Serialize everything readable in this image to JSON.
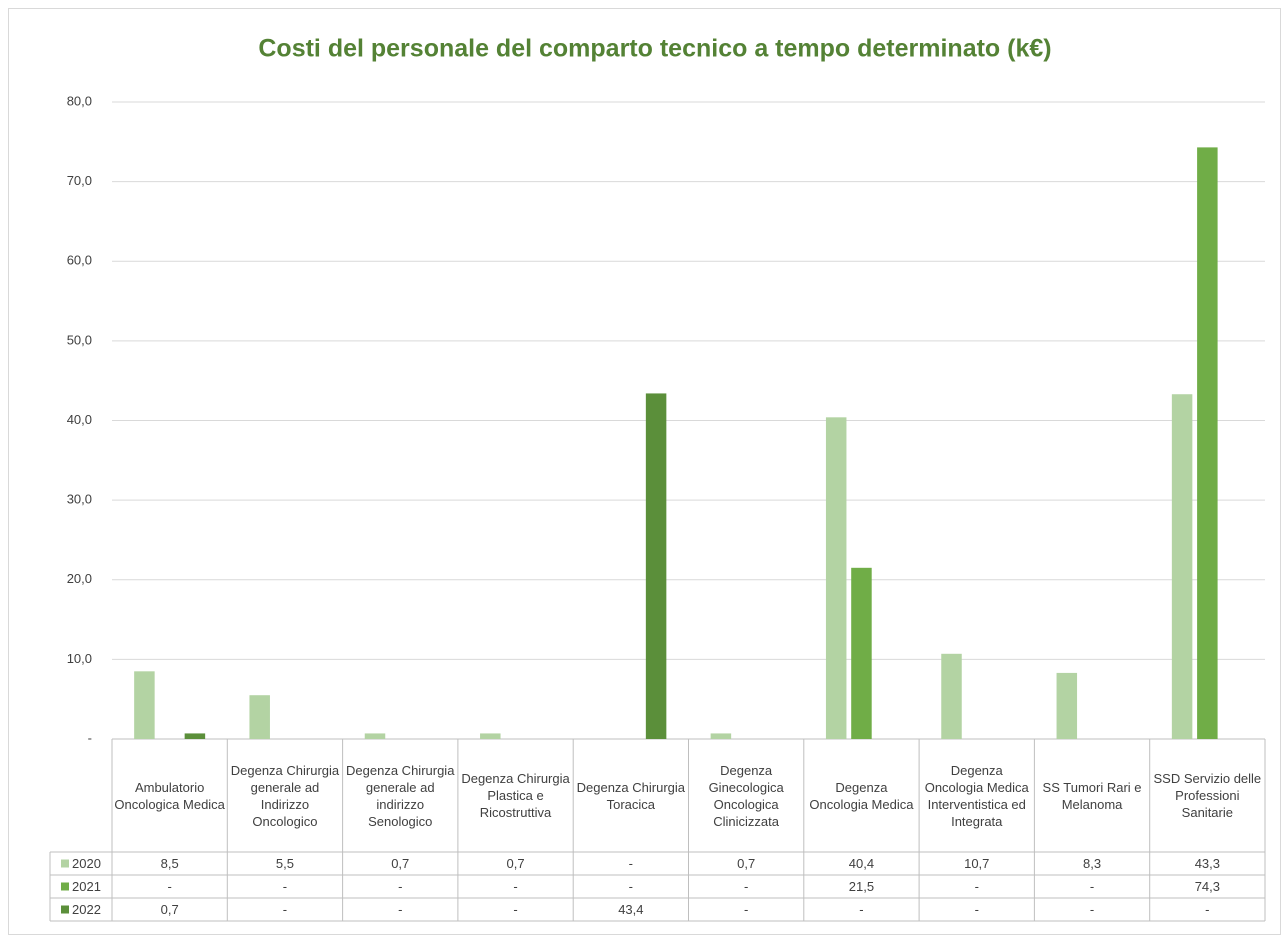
{
  "chart_data": {
    "type": "bar",
    "title": "Costi del personale del comparto tecnico a tempo determinato (k€)",
    "categories": [
      "Ambulatorio Oncologica Medica",
      "Degenza Chirurgia generale ad Indirizzo Oncologico",
      "Degenza Chirurgia generale ad indirizzo Senologico",
      "Degenza Chirurgia Plastica e Ricostruttiva",
      "Degenza Chirurgia Toracica",
      "Degenza Ginecologica Oncologica Clinicizzata",
      "Degenza Oncologia Medica",
      "Degenza Oncologia Medica Interventistica ed Integrata",
      "SS Tumori Rari e Melanoma",
      "SSD Servizio delle Professioni Sanitarie"
    ],
    "series": [
      {
        "name": "2020",
        "color": "#b3d3a3",
        "values": [
          8.5,
          5.5,
          0.7,
          0.7,
          0,
          0.7,
          40.4,
          10.7,
          8.3,
          43.3
        ],
        "value_labels": [
          "8,5",
          "5,5",
          "0,7",
          "0,7",
          "-",
          "0,7",
          "40,4",
          "10,7",
          "8,3",
          "43,3"
        ]
      },
      {
        "name": "2021",
        "color": "#70ad47",
        "values": [
          0,
          0,
          0,
          0,
          0,
          0,
          21.5,
          0,
          0,
          74.3
        ],
        "value_labels": [
          "-",
          "-",
          "-",
          "-",
          "-",
          "-",
          "21,5",
          "-",
          "-",
          "74,3"
        ]
      },
      {
        "name": "2022",
        "color": "#5b8f3a",
        "values": [
          0.7,
          0,
          0,
          0,
          43.4,
          0,
          0,
          0,
          0,
          0
        ],
        "value_labels": [
          "0,7",
          "-",
          "-",
          "-",
          "43,4",
          "-",
          "-",
          "-",
          "-",
          "-"
        ]
      }
    ],
    "ylim": [
      0,
      80
    ],
    "yticks": [
      {
        "value": 0,
        "label": "-"
      },
      {
        "value": 10,
        "label": "10,0"
      },
      {
        "value": 20,
        "label": "20,0"
      },
      {
        "value": 30,
        "label": "30,0"
      },
      {
        "value": 40,
        "label": "40,0"
      },
      {
        "value": 50,
        "label": "50,0"
      },
      {
        "value": 60,
        "label": "60,0"
      },
      {
        "value": 70,
        "label": "70,0"
      },
      {
        "value": 80,
        "label": "80,0"
      }
    ],
    "grid": true
  }
}
